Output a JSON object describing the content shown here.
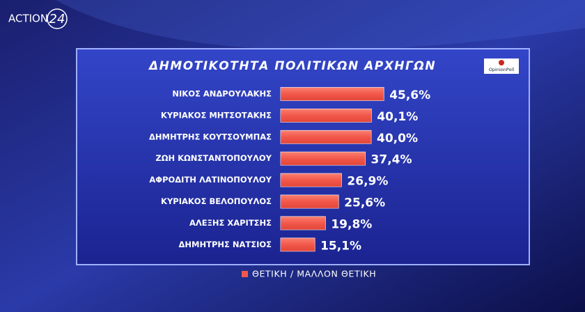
{
  "channel": {
    "name": "ACTION",
    "number": "24"
  },
  "chart_data": {
    "type": "barh",
    "title": "ΔΗΜΟΤΙΚΟΤΗΤΑ ΠΟΛΙΤΙΚΩΝ ΑΡΧΗΓΩΝ",
    "source": "OpinionPoll",
    "categories": [
      "ΝΙΚΟΣ ΑΝΔΡΟΥΛΑΚΗΣ",
      "ΚΥΡΙΑΚΟΣ ΜΗΤΣΟΤΑΚΗΣ",
      "ΔΗΜΗΤΡΗΣ ΚΟΥΤΣΟΥΜΠΑΣ",
      "ΖΩΗ ΚΩΝΣΤΑΝΤΟΠΟΥΛΟΥ",
      "ΑΦΡΟΔΙΤΗ ΛΑΤΙΝΟΠΟΥΛΟΥ",
      "ΚΥΡΙΑΚΟΣ ΒΕΛΟΠΟΥΛΟΣ",
      "ΑΛΕΞΗΣ ΧΑΡΙΤΣΗΣ",
      "ΔΗΜΗΤΡΗΣ ΝΑΤΣΙΟΣ"
    ],
    "series": [
      {
        "name": "ΘΕΤΙΚΗ / ΜΑΛΛΟΝ ΘΕΤΙΚΗ",
        "color": "#f2584a",
        "values": [
          45.6,
          40.1,
          40.0,
          37.4,
          26.9,
          25.6,
          19.8,
          15.1
        ],
        "value_labels": [
          "45,6%",
          "40,1%",
          "40,0%",
          "37,4%",
          "26,9%",
          "25,6%",
          "19,8%",
          "15,1%"
        ]
      }
    ],
    "xlim": [
      0,
      100
    ]
  }
}
